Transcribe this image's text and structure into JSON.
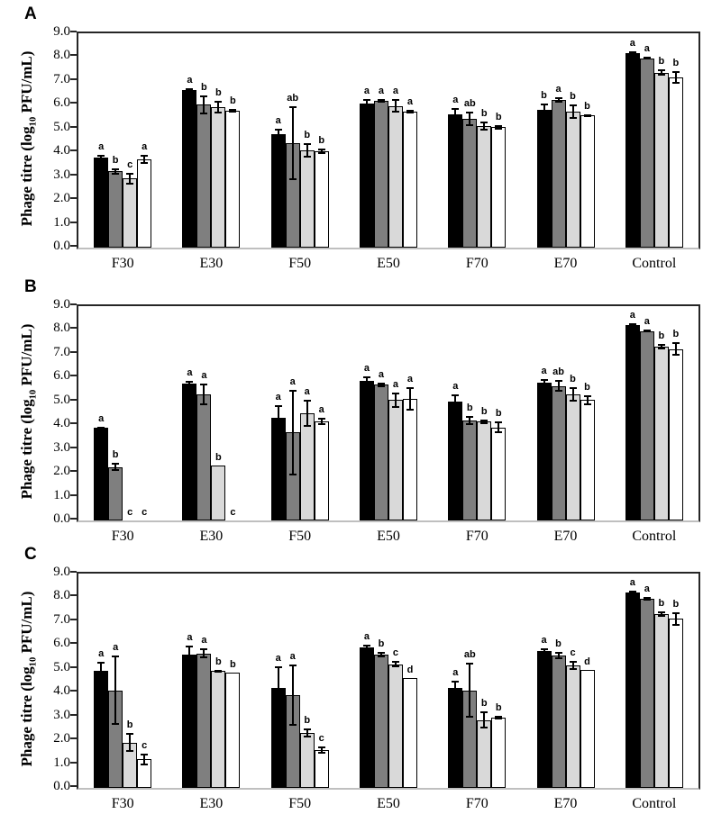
{
  "figure": {
    "type": "multi-panel bar chart",
    "panels": [
      "A",
      "B",
      "C"
    ],
    "ylabel": {
      "prefix": "Phage titre (log",
      "sub": "10",
      "suffix": " PFU/mL)"
    },
    "colors": {
      "series_fills": [
        "#000000",
        "#7f7f7f",
        "#d9d9d9",
        "#ffffff"
      ],
      "bar_border": "#000000",
      "frame": "#262626",
      "baseline": "#bfbfbf",
      "background": "#ffffff"
    }
  },
  "chart_data": [
    {
      "panel": "A",
      "type": "bar",
      "title": "",
      "xlabel": "",
      "ylabel": "Phage titre (log10 PFU/mL)",
      "ylim": [
        0.0,
        9.0
      ],
      "grid": false,
      "legend": "none",
      "ytick_labels": [
        "0.0",
        "1.0",
        "2.0",
        "3.0",
        "4.0",
        "5.0",
        "6.0",
        "7.0",
        "8.0",
        "9.0"
      ],
      "categories": [
        "F30",
        "E30",
        "F50",
        "E50",
        "F70",
        "E70",
        "Control"
      ],
      "series": [
        {
          "name": "black",
          "color": "#000000",
          "values": [
            3.8,
            6.6,
            4.75,
            6.05,
            5.6,
            5.8,
            8.15
          ],
          "errors": [
            0.08,
            0.1,
            0.25,
            0.18,
            0.25,
            0.25,
            0.1
          ],
          "sig_letters": [
            "a",
            "a",
            "a",
            "a",
            "a",
            "b",
            "a"
          ]
        },
        {
          "name": "dark-gray",
          "color": "#7f7f7f",
          "values": [
            3.2,
            6.0,
            4.4,
            6.15,
            5.4,
            6.2,
            7.95
          ],
          "errors": [
            0.12,
            0.4,
            1.55,
            0.08,
            0.3,
            0.12,
            0.06
          ],
          "sig_letters": [
            "b",
            "b",
            "ab",
            "a",
            "ab",
            "a",
            "a"
          ]
        },
        {
          "name": "light-gray",
          "color": "#d9d9d9",
          "values": [
            2.9,
            5.9,
            4.1,
            5.95,
            5.1,
            5.7,
            7.35
          ],
          "errors": [
            0.25,
            0.25,
            0.3,
            0.28,
            0.18,
            0.3,
            0.12
          ],
          "sig_letters": [
            "c",
            "b",
            "b",
            "a",
            "b",
            "b",
            "b"
          ]
        },
        {
          "name": "white",
          "color": "#ffffff",
          "values": [
            3.7,
            5.75,
            4.05,
            5.7,
            5.05,
            5.55,
            7.15
          ],
          "errors": [
            0.2,
            0.07,
            0.12,
            0.08,
            0.1,
            0.06,
            0.28
          ],
          "sig_letters": [
            "a",
            "b",
            "b",
            "a",
            "b",
            "b",
            "b"
          ]
        }
      ]
    },
    {
      "panel": "B",
      "type": "bar",
      "title": "",
      "xlabel": "",
      "ylabel": "Phage titre (log10 PFU/mL)",
      "ylim": [
        0.0,
        9.0
      ],
      "grid": false,
      "legend": "none",
      "ytick_labels": [
        "0.0",
        "1.0",
        "2.0",
        "3.0",
        "4.0",
        "5.0",
        "6.0",
        "7.0",
        "8.0",
        "9.0"
      ],
      "categories": [
        "F30",
        "E30",
        "F50",
        "E50",
        "F70",
        "E70",
        "Control"
      ],
      "series": [
        {
          "name": "black",
          "color": "#000000",
          "values": [
            3.9,
            5.75,
            4.3,
            5.85,
            5.0,
            5.8,
            8.2
          ],
          "errors": [
            0.05,
            0.1,
            0.55,
            0.2,
            0.3,
            0.15,
            0.1
          ],
          "sig_letters": [
            "a",
            "a",
            "a",
            "a",
            "a",
            "a",
            "a"
          ]
        },
        {
          "name": "dark-gray",
          "color": "#7f7f7f",
          "values": [
            2.25,
            5.3,
            3.7,
            5.7,
            4.2,
            5.65,
            7.95
          ],
          "errors": [
            0.17,
            0.45,
            1.8,
            0.1,
            0.2,
            0.25,
            0.06
          ],
          "sig_letters": [
            "b",
            "a",
            "a",
            "a",
            "b",
            "ab",
            "a"
          ]
        },
        {
          "name": "light-gray",
          "color": "#d9d9d9",
          "values": [
            0,
            2.3,
            4.5,
            5.05,
            4.15,
            5.3,
            7.3
          ],
          "errors": [
            0,
            0,
            0.55,
            0.32,
            0.1,
            0.3,
            0.1
          ],
          "sig_letters": [
            "c",
            "b",
            "a",
            "a",
            "b",
            "b",
            "b"
          ]
        },
        {
          "name": "white",
          "color": "#ffffff",
          "values": [
            0,
            0,
            4.15,
            5.1,
            3.9,
            5.05,
            7.2
          ],
          "errors": [
            0,
            0,
            0.15,
            0.5,
            0.25,
            0.2,
            0.28
          ],
          "sig_letters": [
            "c",
            "c",
            "a",
            "a",
            "b",
            "b",
            "b"
          ]
        }
      ]
    },
    {
      "panel": "C",
      "type": "bar",
      "title": "",
      "xlabel": "",
      "ylabel": "Phage titre (log10 PFU/mL)",
      "ylim": [
        0.0,
        9.0
      ],
      "grid": false,
      "legend": "none",
      "ytick_labels": [
        "0.0",
        "1.0",
        "2.0",
        "3.0",
        "4.0",
        "5.0",
        "6.0",
        "7.0",
        "8.0",
        "9.0"
      ],
      "categories": [
        "F30",
        "E30",
        "F50",
        "E50",
        "F70",
        "E70",
        "Control"
      ],
      "series": [
        {
          "name": "black",
          "color": "#000000",
          "values": [
            4.9,
            5.6,
            4.2,
            5.9,
            4.2,
            5.75,
            8.2
          ],
          "errors": [
            0.4,
            0.38,
            0.9,
            0.1,
            0.3,
            0.1,
            0.1
          ],
          "sig_letters": [
            "a",
            "a",
            "a",
            "a",
            "a",
            "a",
            "a"
          ]
        },
        {
          "name": "dark-gray",
          "color": "#7f7f7f",
          "values": [
            4.1,
            5.65,
            3.9,
            5.6,
            4.1,
            5.55,
            7.95
          ],
          "errors": [
            1.45,
            0.2,
            1.3,
            0.1,
            1.15,
            0.15,
            0.07
          ],
          "sig_letters": [
            "a",
            "a",
            "a",
            "b",
            "ab",
            "b",
            "a"
          ]
        },
        {
          "name": "light-gray",
          "color": "#d9d9d9",
          "values": [
            1.9,
            4.9,
            2.3,
            5.2,
            2.85,
            5.15,
            7.3
          ],
          "errors": [
            0.4,
            0.07,
            0.2,
            0.15,
            0.35,
            0.2,
            0.1
          ],
          "sig_letters": [
            "b",
            "b",
            "b",
            "c",
            "b",
            "c",
            "b"
          ]
        },
        {
          "name": "white",
          "color": "#ffffff",
          "values": [
            1.2,
            4.85,
            1.6,
            4.6,
            2.95,
            4.95,
            7.1
          ],
          "errors": [
            0.25,
            0,
            0.15,
            0,
            0.07,
            0,
            0.28
          ],
          "sig_letters": [
            "c",
            "b",
            "c",
            "d",
            "b",
            "d",
            "b"
          ]
        }
      ]
    }
  ]
}
